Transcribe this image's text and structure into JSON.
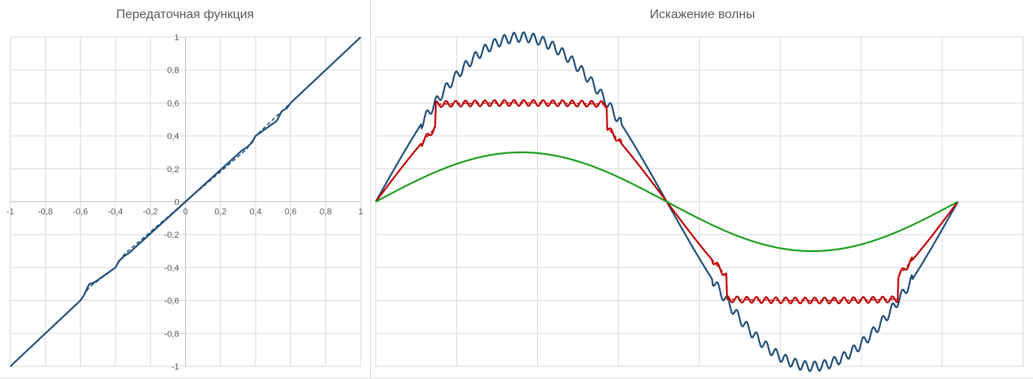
{
  "chart_data": [
    {
      "type": "line",
      "title": "Передаточная функция",
      "xlabel": "",
      "ylabel": "",
      "xlim": [
        -1,
        1
      ],
      "ylim": [
        -1,
        1
      ],
      "x_ticks": [
        "-1",
        "-0,8",
        "-0,6",
        "-0,4",
        "-0,2",
        "0",
        "0,2",
        "0,4",
        "0,6",
        "0,8",
        "1"
      ],
      "y_ticks": [
        "1",
        "0,8",
        "0,6",
        "0,4",
        "0,2",
        "0",
        "-0,2",
        "-0,4",
        "-0,6",
        "-0,8",
        "-1"
      ],
      "grid": true,
      "series": [
        {
          "color": "#1f4e79",
          "style": "dashed",
          "x": [
            -1,
            -0.6,
            -0.55,
            -0.4,
            -0.35,
            0,
            0.35,
            0.4,
            0.55,
            0.6,
            1
          ],
          "y": [
            -1,
            -0.6,
            -0.52,
            -0.4,
            -0.32,
            0,
            0.32,
            0.4,
            0.55,
            0.6,
            1
          ]
        },
        {
          "color": "#1f4e79",
          "style": "solid",
          "x": [
            -1,
            -0.6,
            -0.58,
            -0.55,
            -0.52,
            -0.4,
            -0.38,
            -0.35,
            -0.32,
            0,
            0.32,
            0.35,
            0.38,
            0.4,
            0.52,
            0.55,
            0.58,
            0.6,
            1
          ],
          "y": [
            -1,
            -0.6,
            -0.57,
            -0.5,
            -0.49,
            -0.4,
            -0.36,
            -0.33,
            -0.31,
            0,
            0.31,
            0.33,
            0.36,
            0.4,
            0.49,
            0.55,
            0.57,
            0.6,
            1
          ]
        }
      ]
    },
    {
      "type": "line",
      "title": "Искажение волны",
      "xlabel": "",
      "ylabel": "",
      "x_unit": "period",
      "xlim": [
        0,
        1.125
      ],
      "ylim": [
        -1,
        1
      ],
      "grid": true,
      "series": [
        {
          "color": "#1f4e79",
          "style": "solid",
          "amplitude": 1.0,
          "ripple": 0.03,
          "ripple_band": [
            0.5,
            1.0
          ]
        },
        {
          "color": "#c00000",
          "style": "dashed",
          "amplitude": 0.6,
          "ripple": 0.0,
          "clip": 0.6
        },
        {
          "color": "#c00000",
          "style": "solid",
          "amplitude": 0.6,
          "ripple": 0.018,
          "ripple_band": [
            0.3,
            0.6
          ],
          "clip": 0.6
        },
        {
          "color": "#1e9c1e",
          "style": "solid",
          "amplitude": 0.3,
          "ripple": 0.0
        }
      ]
    }
  ]
}
